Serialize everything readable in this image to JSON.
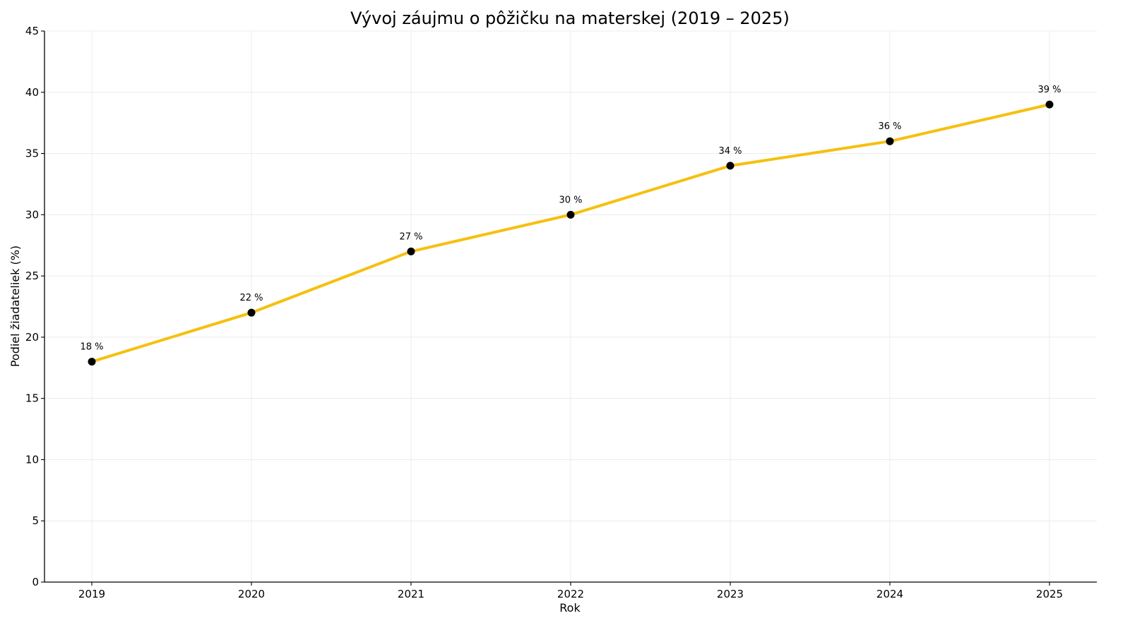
{
  "chart_data": {
    "type": "line",
    "title": "Vývoj záujmu o pôžičku na materskej (2019 – 2025)",
    "xlabel": "Rok",
    "ylabel": "Podiel žiadateliek (%)",
    "categories": [
      "2019",
      "2020",
      "2021",
      "2022",
      "2023",
      "2024",
      "2025"
    ],
    "series": [
      {
        "values": [
          18,
          22,
          27,
          30,
          34,
          36,
          39
        ],
        "labels": [
          "18 %",
          "22 %",
          "27 %",
          "30 %",
          "34 %",
          "36 %",
          "39 %"
        ]
      }
    ],
    "ylim": [
      0,
      45
    ],
    "yticks": [
      "0",
      "5",
      "10",
      "15",
      "20",
      "25",
      "30",
      "35",
      "40",
      "45"
    ],
    "grid": true,
    "line_color": "#f5c010",
    "marker_color": "#000000"
  }
}
